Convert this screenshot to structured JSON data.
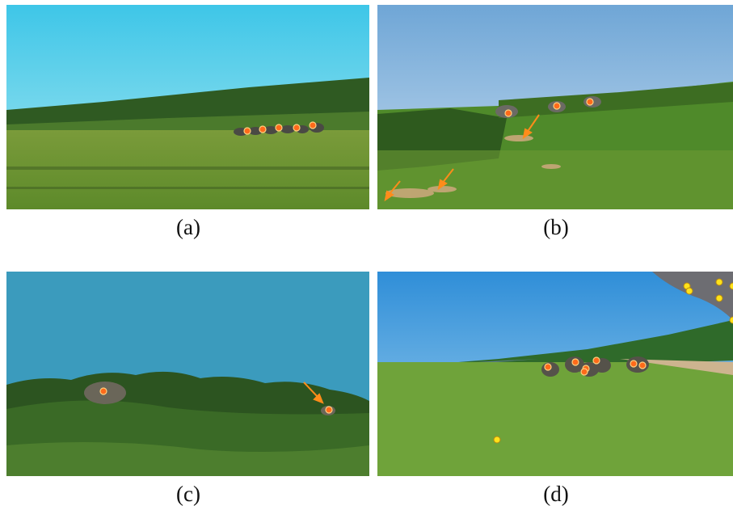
{
  "figure": {
    "panels": [
      {
        "id": "a",
        "label": "(a)"
      },
      {
        "id": "b",
        "label": "(b)"
      },
      {
        "id": "c",
        "label": "(c)"
      },
      {
        "id": "d",
        "label": "(d)"
      }
    ]
  },
  "colors": {
    "marker_orange": "#ff6a1a",
    "marker_yellow": "#ffe21a",
    "arrow_orange": "#ff8c1a"
  }
}
